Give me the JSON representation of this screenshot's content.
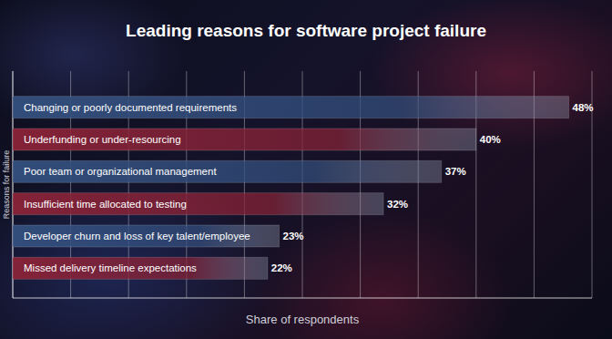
{
  "chart_data": {
    "type": "bar",
    "orientation": "horizontal",
    "title": "Leading reasons for software project failure",
    "x_label": "Share of respondents",
    "y_label": "Reasons for failure",
    "categories": [
      "Changing or poorly documented requirements",
      "Underfunding or under-resourcing",
      "Poor team or organizational management",
      "Insufficient time allocated to testing",
      "Developer churn and loss of key talent/employee",
      "Missed delivery timeline expectations"
    ],
    "values": [
      48,
      40,
      37,
      32,
      23,
      22
    ],
    "value_labels": [
      "48%",
      "40%",
      "37%",
      "32%",
      "23%",
      "22%"
    ],
    "data_labels": true,
    "colors": [
      "#34507f",
      "#8a2338",
      "#34507f",
      "#8a2338",
      "#34507f",
      "#8a2338"
    ],
    "xlim": [
      0,
      50
    ],
    "xticks": [
      0,
      5,
      10,
      15,
      20,
      25,
      30,
      35,
      40,
      45,
      50
    ],
    "grid": true,
    "tick_labels": false
  }
}
